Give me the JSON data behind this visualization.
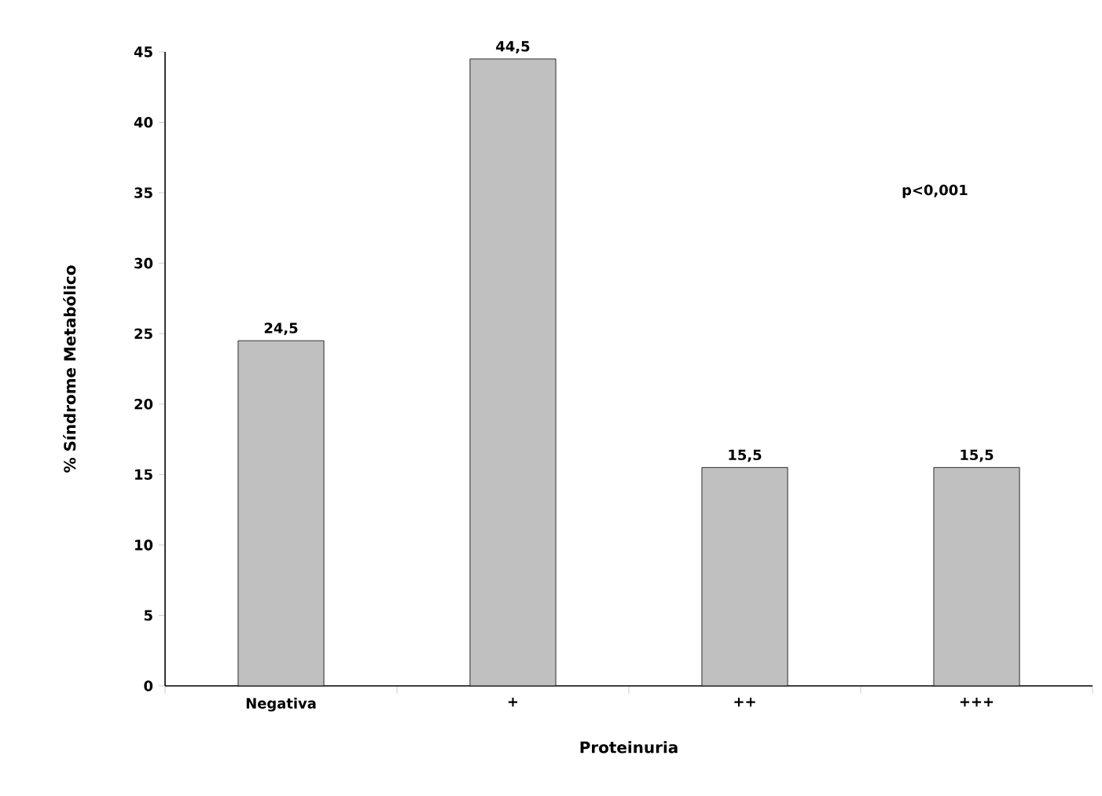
{
  "chart_data": {
    "type": "bar",
    "xlabel": "Proteinuria",
    "ylabel": "% Síndrome Metabólico",
    "categories": [
      "Negativa",
      "+",
      "++",
      "+++"
    ],
    "values": [
      24.5,
      44.5,
      15.5,
      15.5
    ],
    "value_labels": [
      "24,5",
      "44,5",
      "15,5",
      "15,5"
    ],
    "color": "#c0c0c0",
    "ylim": [
      0,
      45
    ],
    "yticks": [
      0,
      5,
      10,
      15,
      20,
      25,
      30,
      35,
      40,
      45
    ],
    "annotations": [
      "p<0,001"
    ]
  }
}
